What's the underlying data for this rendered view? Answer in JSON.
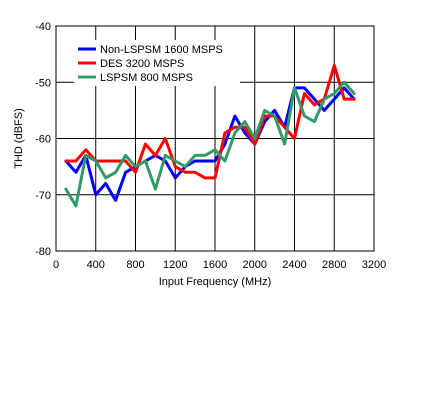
{
  "chart_data": {
    "type": "line",
    "title": "",
    "xlabel": "Input Frequency (MHz)",
    "ylabel": "THD (dBFS)",
    "xlim": [
      0,
      3200
    ],
    "ylim": [
      -80,
      -40
    ],
    "xticks": [
      0,
      400,
      800,
      1200,
      1600,
      2000,
      2400,
      2800,
      3200
    ],
    "yticks": [
      -80,
      -70,
      -60,
      -50,
      -40
    ],
    "grid": true,
    "legend_position": "top-left",
    "series": [
      {
        "name": "Non-LSPSM 1600 MSPS",
        "color": "#0000ff",
        "x": [
          100,
          200,
          300,
          400,
          500,
          600,
          700,
          800,
          900,
          1000,
          1100,
          1200,
          1300,
          1400,
          1500,
          1600,
          1700,
          1800,
          1900,
          2000,
          2100,
          2200,
          2300,
          2400,
          2500,
          2600,
          2700,
          2800,
          2900,
          3000
        ],
        "y": [
          -64,
          -66,
          -63,
          -70,
          -68,
          -71,
          -66,
          -65,
          -64,
          -63,
          -64,
          -67,
          -65,
          -64,
          -64,
          -64,
          -61,
          -56,
          -59,
          -61,
          -57,
          -55,
          -58,
          -51,
          -51,
          -53,
          -55,
          -53,
          -51,
          -53
        ]
      },
      {
        "name": "DES 3200 MSPS",
        "color": "#ff0000",
        "x": [
          100,
          200,
          300,
          400,
          500,
          600,
          700,
          800,
          900,
          1000,
          1100,
          1200,
          1300,
          1400,
          1500,
          1600,
          1700,
          1800,
          1900,
          2000,
          2100,
          2200,
          2300,
          2400,
          2500,
          2600,
          2700,
          2800,
          2900,
          3000
        ],
        "y": [
          -64,
          -64,
          -62,
          -64,
          -64,
          -64,
          -64,
          -66,
          -61,
          -63,
          -60,
          -65,
          -66,
          -66,
          -67,
          -67,
          -59,
          -58,
          -58,
          -61,
          -56,
          -56,
          -58,
          -60,
          -52,
          -54,
          -53,
          -47,
          -53,
          -53
        ]
      },
      {
        "name": "LSPSM 800 MSPS",
        "color": "#339966",
        "x": [
          100,
          200,
          300,
          400,
          500,
          600,
          700,
          800,
          900,
          1000,
          1100,
          1200,
          1300,
          1400,
          1500,
          1600,
          1700,
          1800,
          1900,
          2000,
          2100,
          2200,
          2300,
          2400,
          2500,
          2600,
          2700,
          2800,
          2900,
          3000
        ],
        "y": [
          -69,
          -72,
          -63,
          -64,
          -67,
          -66,
          -63,
          -65,
          -64,
          -69,
          -63,
          -64,
          -65,
          -63,
          -63,
          -62,
          -64,
          -59,
          -57,
          -60,
          -55,
          -56,
          -61,
          -51,
          -56,
          -57,
          -53,
          -52,
          -50,
          -52
        ]
      }
    ]
  }
}
